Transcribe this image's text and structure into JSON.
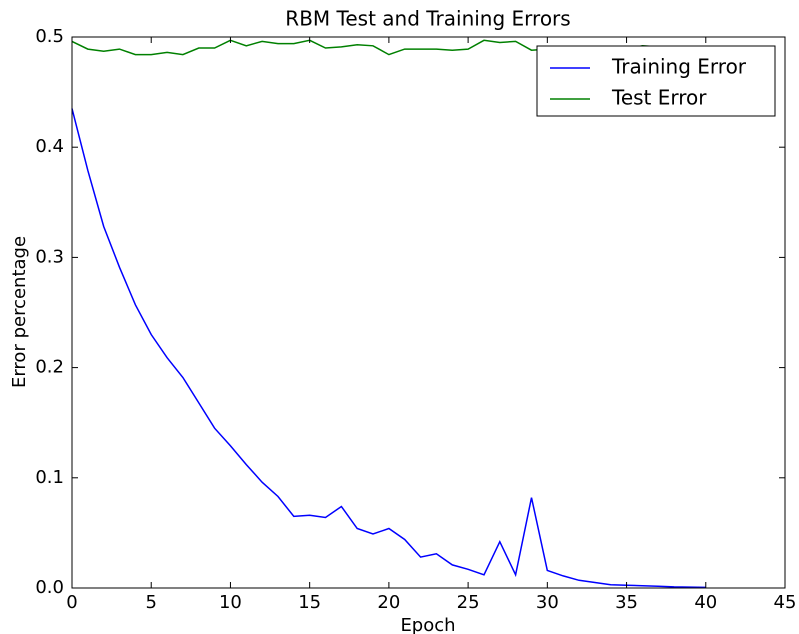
{
  "chart_data": {
    "type": "line",
    "title": "RBM Test and Training Errors",
    "x_label": "Epoch",
    "y_label": "Error percentage",
    "xlim": [
      0,
      45
    ],
    "xticks": [
      0,
      5,
      10,
      15,
      20,
      25,
      30,
      35,
      40,
      45
    ],
    "ylim": [
      0,
      0.5
    ],
    "yticks": [
      {
        "value": 0,
        "label": "0.0"
      },
      0.1,
      0.2,
      0.3,
      0.4,
      0.5
    ],
    "legend": "upper right",
    "series": [
      {
        "name": "Training Error",
        "color": "#0000ff",
        "x": [
          0,
          1,
          2,
          3,
          4,
          5,
          6,
          7,
          8,
          9,
          10,
          11,
          12,
          13,
          14,
          15,
          16,
          17,
          18,
          19,
          20,
          21,
          22,
          23,
          24,
          25,
          26,
          27,
          28,
          29,
          30,
          31,
          32,
          33,
          34,
          35,
          36,
          37,
          38,
          39,
          40
        ],
        "values": [
          0.435,
          0.379,
          0.328,
          0.291,
          0.257,
          0.23,
          0.209,
          0.191,
          0.168,
          0.145,
          0.129,
          0.112,
          0.096,
          0.083,
          0.065,
          0.066,
          0.064,
          0.074,
          0.054,
          0.049,
          0.054,
          0.044,
          0.028,
          0.031,
          0.021,
          0.017,
          0.012,
          0.042,
          0.012,
          0.082,
          0.016,
          0.011,
          0.007,
          0.005,
          0.003,
          0.0025,
          0.002,
          0.0015,
          0.001,
          0.0008,
          0.0005
        ]
      },
      {
        "name": "Test Error",
        "color": "#008000",
        "x": [
          0,
          1,
          2,
          3,
          4,
          5,
          6,
          7,
          8,
          9,
          10,
          11,
          12,
          13,
          14,
          15,
          16,
          17,
          18,
          19,
          20,
          21,
          22,
          23,
          24,
          25,
          26,
          27,
          28,
          29,
          30,
          31,
          32,
          33,
          34,
          35,
          36,
          37,
          38,
          39,
          40,
          41
        ],
        "values": [
          0.496,
          0.489,
          0.487,
          0.489,
          0.484,
          0.484,
          0.486,
          0.484,
          0.49,
          0.49,
          0.497,
          0.492,
          0.496,
          0.494,
          0.494,
          0.497,
          0.49,
          0.491,
          0.493,
          0.492,
          0.484,
          0.489,
          0.489,
          0.489,
          0.488,
          0.489,
          0.497,
          0.495,
          0.496,
          0.488,
          0.489,
          0.489,
          0.489,
          0.489,
          0.491,
          0.489,
          0.492,
          0.491,
          0.49,
          0.49,
          0.491,
          0.49
        ]
      }
    ]
  }
}
